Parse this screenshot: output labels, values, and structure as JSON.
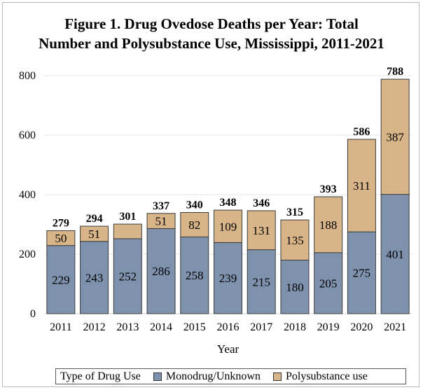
{
  "chart_data": {
    "type": "bar",
    "stacked": true,
    "title": "Figure 1. Drug Ovedose Deaths per Year: Total Number and Polysubstance Use, Mississippi, 2011-2021",
    "title_lines": [
      "Figure 1. Drug Ovedose Deaths per Year: Total",
      "Number and Polysubstance Use, Mississippi, 2011-2021"
    ],
    "xlabel": "Year",
    "ylabel": "",
    "ylim": [
      0,
      800
    ],
    "yticks": [
      0,
      200,
      400,
      600,
      800
    ],
    "grid": true,
    "legend_position": "bottom",
    "legend_title": "Type of Drug Use",
    "categories": [
      "2011",
      "2012",
      "2013",
      "2014",
      "2015",
      "2016",
      "2017",
      "2018",
      "2019",
      "2020",
      "2021"
    ],
    "series": [
      {
        "name": "Monodrug/Unknown",
        "color": "#7f92ad",
        "values": [
          229,
          243,
          252,
          286,
          258,
          239,
          215,
          180,
          205,
          275,
          401
        ]
      },
      {
        "name": "Polysubstance use",
        "color": "#d8b489",
        "values": [
          50,
          51,
          49,
          51,
          82,
          109,
          131,
          135,
          188,
          311,
          387
        ]
      }
    ],
    "segment_labels": [
      [
        "229",
        "243",
        "252",
        "286",
        "258",
        "239",
        "215",
        "180",
        "205",
        "275",
        "401"
      ],
      [
        "50",
        "51",
        "",
        "51",
        "82",
        "109",
        "131",
        "135",
        "188",
        "311",
        "387"
      ]
    ],
    "totals": [
      279,
      294,
      301,
      337,
      340,
      348,
      346,
      315,
      393,
      586,
      788
    ]
  }
}
